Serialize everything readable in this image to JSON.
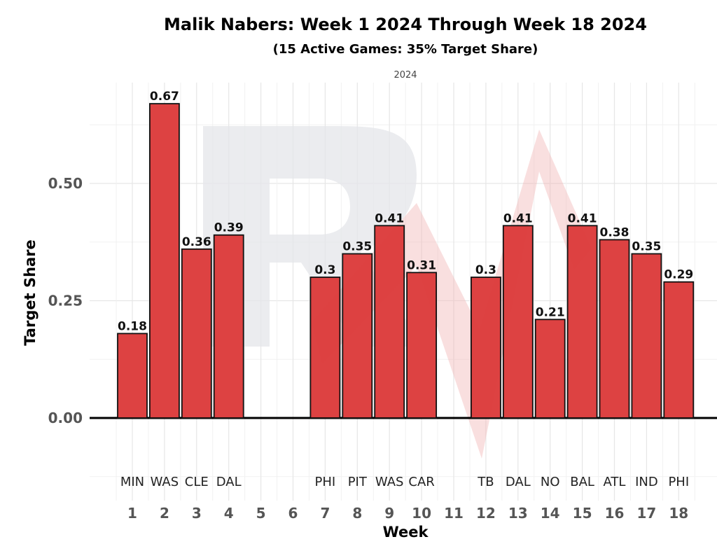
{
  "chart_data": {
    "type": "bar",
    "title": "Malik Nabers: Week 1 2024 Through Week 18 2024",
    "subtitle": "(15 Active Games: 35% Target Share)",
    "facet_label": "2024",
    "xlabel": "Week",
    "ylabel": "Target Share",
    "x_ticks": [
      "1",
      "2",
      "3",
      "4",
      "5",
      "6",
      "7",
      "8",
      "9",
      "10",
      "11",
      "12",
      "13",
      "14",
      "15",
      "16",
      "17",
      "18"
    ],
    "y_ticks": [
      "0.00",
      "0.25",
      "0.50"
    ],
    "ylim": [
      -0.17,
      0.71
    ],
    "grid": true,
    "bar_color": "#dc3c3c",
    "bars": [
      {
        "week": 1,
        "value": 0.18,
        "label": "0.18",
        "opponent": "MIN"
      },
      {
        "week": 2,
        "value": 0.67,
        "label": "0.67",
        "opponent": "WAS"
      },
      {
        "week": 3,
        "value": 0.36,
        "label": "0.36",
        "opponent": "CLE"
      },
      {
        "week": 4,
        "value": 0.39,
        "label": "0.39",
        "opponent": "DAL"
      },
      {
        "week": 7,
        "value": 0.3,
        "label": "0.3",
        "opponent": "PHI"
      },
      {
        "week": 8,
        "value": 0.35,
        "label": "0.35",
        "opponent": "PIT"
      },
      {
        "week": 9,
        "value": 0.41,
        "label": "0.41",
        "opponent": "WAS"
      },
      {
        "week": 10,
        "value": 0.31,
        "label": "0.31",
        "opponent": "CAR"
      },
      {
        "week": 12,
        "value": 0.3,
        "label": "0.3",
        "opponent": "TB"
      },
      {
        "week": 13,
        "value": 0.41,
        "label": "0.41",
        "opponent": "DAL"
      },
      {
        "week": 14,
        "value": 0.21,
        "label": "0.21",
        "opponent": "NO"
      },
      {
        "week": 15,
        "value": 0.41,
        "label": "0.41",
        "opponent": "BAL"
      },
      {
        "week": 16,
        "value": 0.38,
        "label": "0.38",
        "opponent": "ATL"
      },
      {
        "week": 17,
        "value": 0.35,
        "label": "0.35",
        "opponent": "IND"
      },
      {
        "week": 18,
        "value": 0.29,
        "label": "0.29",
        "opponent": "PHI"
      }
    ]
  }
}
